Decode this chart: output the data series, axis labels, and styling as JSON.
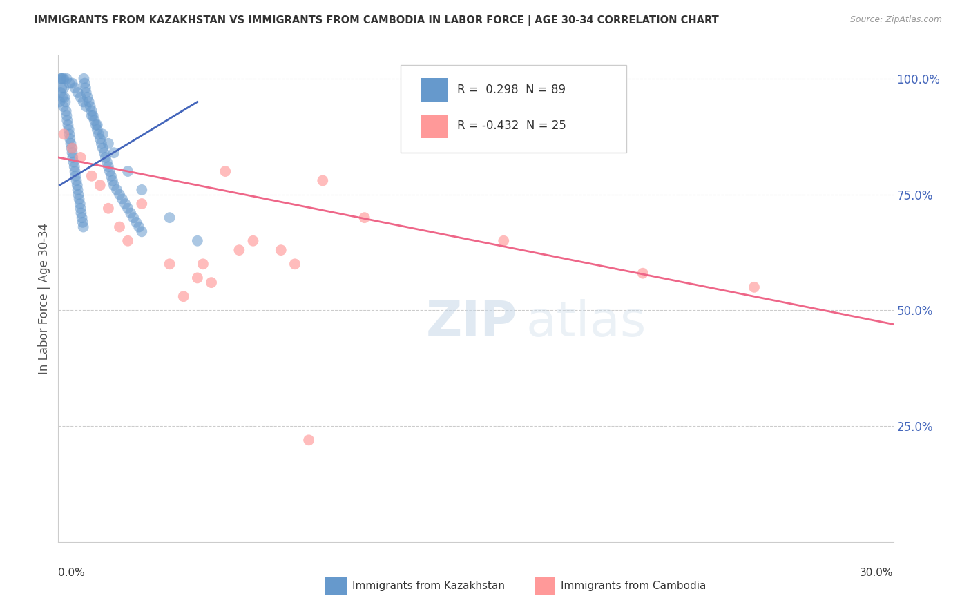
{
  "title": "IMMIGRANTS FROM KAZAKHSTAN VS IMMIGRANTS FROM CAMBODIA IN LABOR FORCE | AGE 30-34 CORRELATION CHART",
  "source": "Source: ZipAtlas.com",
  "ylabel": "In Labor Force | Age 30-34",
  "xlim": [
    0.0,
    30.0
  ],
  "ylim": [
    0.0,
    105.0
  ],
  "R_kaz": 0.298,
  "N_kaz": 89,
  "R_cam": -0.432,
  "N_cam": 25,
  "blue_color": "#6699CC",
  "pink_color": "#FF9999",
  "blue_line_color": "#4466BB",
  "pink_line_color": "#EE6688",
  "legend_label_kaz": "Immigrants from Kazakhstan",
  "legend_label_cam": "Immigrants from Cambodia",
  "kaz_x": [
    0.05,
    0.08,
    0.1,
    0.12,
    0.15,
    0.15,
    0.18,
    0.2,
    0.22,
    0.25,
    0.28,
    0.3,
    0.32,
    0.35,
    0.38,
    0.4,
    0.42,
    0.45,
    0.48,
    0.5,
    0.52,
    0.55,
    0.58,
    0.6,
    0.62,
    0.65,
    0.68,
    0.7,
    0.72,
    0.75,
    0.78,
    0.8,
    0.82,
    0.85,
    0.88,
    0.9,
    0.92,
    0.95,
    0.98,
    1.0,
    1.05,
    1.1,
    1.15,
    1.2,
    1.25,
    1.3,
    1.35,
    1.4,
    1.45,
    1.5,
    1.55,
    1.6,
    1.65,
    1.7,
    1.75,
    1.8,
    1.85,
    1.9,
    1.95,
    2.0,
    2.1,
    2.2,
    2.3,
    2.4,
    2.5,
    2.6,
    2.7,
    2.8,
    2.9,
    3.0,
    0.1,
    0.2,
    0.3,
    0.4,
    0.5,
    0.6,
    0.7,
    0.8,
    0.9,
    1.0,
    1.2,
    1.4,
    1.6,
    1.8,
    2.0,
    2.5,
    3.0,
    4.0,
    5.0
  ],
  "kaz_y": [
    95,
    97,
    100,
    98,
    96,
    100,
    94,
    98,
    96,
    95,
    93,
    92,
    91,
    90,
    89,
    88,
    87,
    86,
    85,
    84,
    83,
    82,
    81,
    80,
    79,
    78,
    77,
    76,
    75,
    74,
    73,
    72,
    71,
    70,
    69,
    68,
    100,
    99,
    98,
    97,
    96,
    95,
    94,
    93,
    92,
    91,
    90,
    89,
    88,
    87,
    86,
    85,
    84,
    83,
    82,
    81,
    80,
    79,
    78,
    77,
    76,
    75,
    74,
    73,
    72,
    71,
    70,
    69,
    68,
    67,
    100,
    100,
    100,
    99,
    99,
    98,
    97,
    96,
    95,
    94,
    92,
    90,
    88,
    86,
    84,
    80,
    76,
    70,
    65
  ],
  "cam_x": [
    0.2,
    0.5,
    0.8,
    1.2,
    1.5,
    1.8,
    2.2,
    2.5,
    3.0,
    4.0,
    5.0,
    5.5,
    6.0,
    7.0,
    8.0,
    9.5,
    11.0,
    16.0,
    21.0,
    25.0,
    4.5,
    5.2,
    6.5,
    8.5,
    9.0
  ],
  "cam_y": [
    88,
    85,
    83,
    79,
    77,
    72,
    68,
    65,
    73,
    60,
    57,
    56,
    80,
    65,
    63,
    78,
    70,
    65,
    58,
    55,
    53,
    60,
    63,
    60,
    22
  ],
  "cam_line_x": [
    0.0,
    30.0
  ],
  "cam_line_y": [
    83.0,
    47.0
  ],
  "kaz_line_x": [
    0.05,
    5.0
  ],
  "kaz_line_y": [
    77.0,
    95.0
  ]
}
